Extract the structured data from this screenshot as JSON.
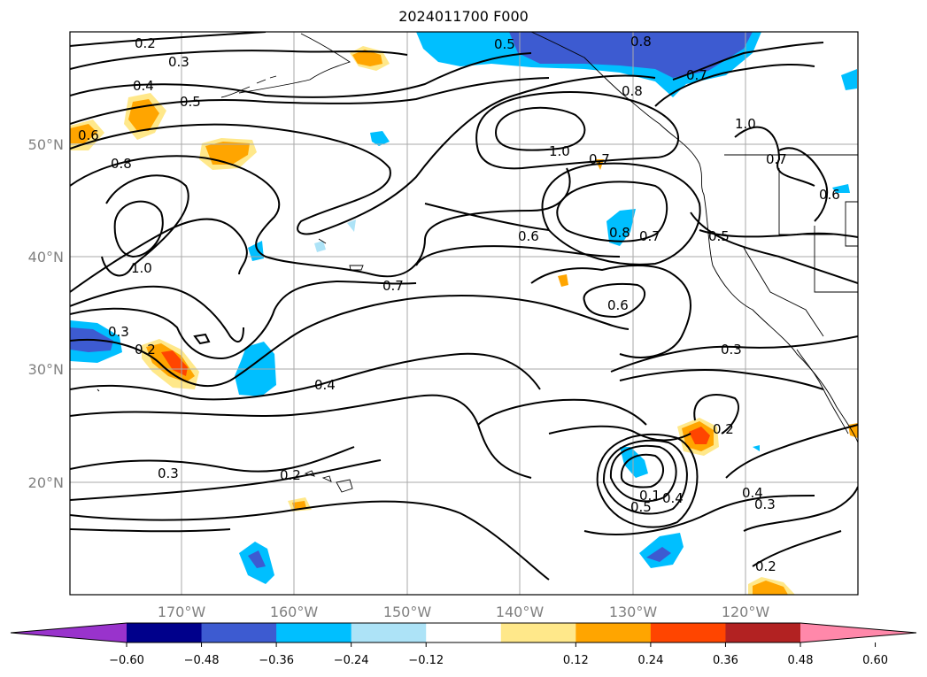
{
  "title": "2024011700 F000",
  "lat_labels": [
    "50°N",
    "40°N",
    "30°N",
    "20°N"
  ],
  "lon_labels": [
    "170°W",
    "160°W",
    "150°W",
    "140°W",
    "130°W",
    "120°W"
  ],
  "contour_labels": [
    "0.2",
    "0.3",
    "0.4",
    "0.5",
    "0.6",
    "0.8",
    "1.0",
    "0.7",
    "0.3",
    "0.4",
    "0.2",
    "0.3",
    "0.5",
    "0.8",
    "0.8",
    "0.7",
    "1.0",
    "1.0",
    "0.6",
    "0.7",
    "0.8",
    "0.7",
    "0.6",
    "0.5",
    "0.7",
    "0.6",
    "0.3",
    "0.2",
    "0.4",
    "0.3",
    "0.2",
    "0.1",
    "0.5",
    "0.4",
    "0.2"
  ],
  "colorbar": {
    "ticks": [
      "−0.60",
      "−0.48",
      "−0.36",
      "−0.24",
      "−0.12",
      "0.12",
      "0.24",
      "0.36",
      "0.48",
      "0.60"
    ],
    "colors": [
      "#9933cc",
      "#00008b",
      "#3d5bd1",
      "#00bfff",
      "#ade3f7",
      "#ffffff",
      "#ffe88a",
      "#ffa500",
      "#ff4500",
      "#b22222",
      "#ff88aa"
    ]
  }
}
